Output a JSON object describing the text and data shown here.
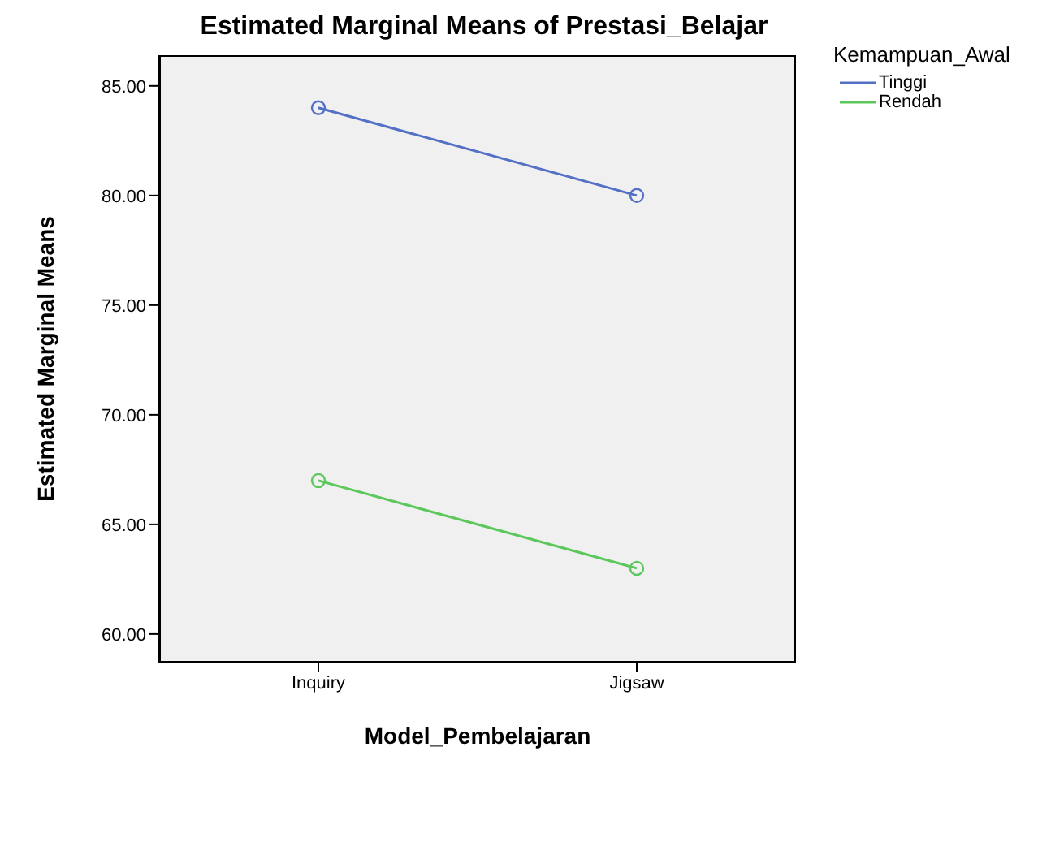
{
  "chart_data": {
    "type": "line",
    "title": "Estimated Marginal Means of Prestasi_Belajar",
    "xlabel": "Model_Pembelajaran",
    "ylabel": "Estimated Marginal Means",
    "legend_title": "Kemampuan_Awal",
    "categories": [
      "Inquiry",
      "Jigsaw"
    ],
    "series": [
      {
        "name": "Tinggi",
        "color": "#5470c6",
        "values": [
          84,
          80
        ]
      },
      {
        "name": "Rendah",
        "color": "#5cc85c",
        "values": [
          67,
          63
        ]
      }
    ],
    "ylim": [
      58.7,
      86.4
    ],
    "yticks": [
      {
        "value": 60,
        "label": "60.00"
      },
      {
        "value": 65,
        "label": "65.00"
      },
      {
        "value": 70,
        "label": "70.00"
      },
      {
        "value": 75,
        "label": "75.00"
      },
      {
        "value": 80,
        "label": "80.00"
      },
      {
        "value": 85,
        "label": "85.00"
      }
    ],
    "grid": false,
    "legend": "top right",
    "marker": "circle",
    "line_style": "solid"
  }
}
